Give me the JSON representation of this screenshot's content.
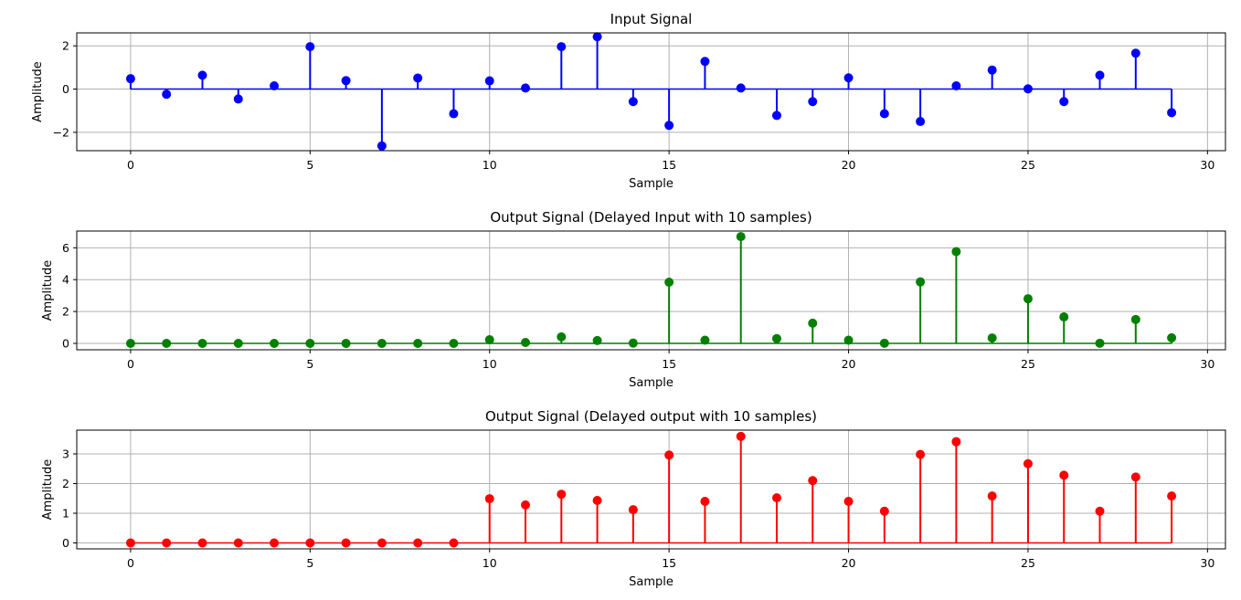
{
  "chart_data": [
    {
      "type": "stem",
      "title": "Input Signal",
      "xlabel": "Sample",
      "ylabel": "Amplitude",
      "color": "#0000ff",
      "xlim": [
        -1.5,
        30.5
      ],
      "ylim": [
        -2.85,
        2.6
      ],
      "xticks": [
        0,
        5,
        10,
        15,
        20,
        25,
        30
      ],
      "yticks": [
        -2,
        0,
        2
      ],
      "grid": true,
      "x": [
        0,
        1,
        2,
        3,
        4,
        5,
        6,
        7,
        8,
        9,
        10,
        11,
        12,
        13,
        14,
        15,
        16,
        17,
        18,
        19,
        20,
        21,
        22,
        23,
        24,
        25,
        26,
        27,
        28,
        29
      ],
      "values": [
        0.48,
        -0.24,
        0.64,
        -0.46,
        0.15,
        1.96,
        0.39,
        -2.63,
        0.51,
        -1.14,
        0.38,
        0.05,
        1.96,
        2.42,
        -0.58,
        -1.68,
        1.28,
        0.05,
        -1.22,
        -0.58,
        0.52,
        -1.14,
        -1.5,
        0.15,
        0.88,
        0.01,
        -0.58,
        0.64,
        1.66,
        -1.09
      ]
    },
    {
      "type": "stem",
      "title": "Output Signal (Delayed Input with 10 samples)",
      "xlabel": "Sample",
      "ylabel": "Amplitude",
      "color": "#008000",
      "xlim": [
        -1.5,
        30.5
      ],
      "ylim": [
        -0.4,
        7.05
      ],
      "xticks": [
        0,
        5,
        10,
        15,
        20,
        25,
        30
      ],
      "yticks": [
        0,
        2,
        4,
        6
      ],
      "grid": true,
      "x": [
        0,
        1,
        2,
        3,
        4,
        5,
        6,
        7,
        8,
        9,
        10,
        11,
        12,
        13,
        14,
        15,
        16,
        17,
        18,
        19,
        20,
        21,
        22,
        23,
        24,
        25,
        26,
        27,
        28,
        29
      ],
      "values": [
        0,
        0,
        0,
        0,
        0,
        0,
        0,
        0,
        0,
        0,
        0.23,
        0.06,
        0.41,
        0.18,
        0.02,
        3.84,
        0.2,
        6.7,
        0.3,
        1.27,
        0.2,
        0.01,
        3.86,
        5.76,
        0.34,
        2.8,
        1.66,
        0.01,
        1.5,
        0.35
      ]
    },
    {
      "type": "stem",
      "title": "Output Signal (Delayed output with 10 samples)",
      "xlabel": "Sample",
      "ylabel": "Amplitude",
      "color": "#ff0000",
      "xlim": [
        -1.5,
        30.5
      ],
      "ylim": [
        -0.2,
        3.8
      ],
      "xticks": [
        0,
        5,
        10,
        15,
        20,
        25,
        30
      ],
      "yticks": [
        0,
        1,
        2,
        3
      ],
      "grid": true,
      "x": [
        0,
        1,
        2,
        3,
        4,
        5,
        6,
        7,
        8,
        9,
        10,
        11,
        12,
        13,
        14,
        15,
        16,
        17,
        18,
        19,
        20,
        21,
        22,
        23,
        24,
        25,
        26,
        27,
        28,
        29
      ],
      "values": [
        0,
        0,
        0,
        0,
        0,
        0,
        0,
        0,
        0,
        0,
        1.49,
        1.28,
        1.64,
        1.43,
        1.12,
        2.96,
        1.4,
        3.59,
        1.52,
        2.1,
        1.4,
        1.07,
        2.98,
        3.41,
        1.58,
        2.67,
        2.28,
        1.07,
        2.22,
        1.58
      ]
    }
  ]
}
